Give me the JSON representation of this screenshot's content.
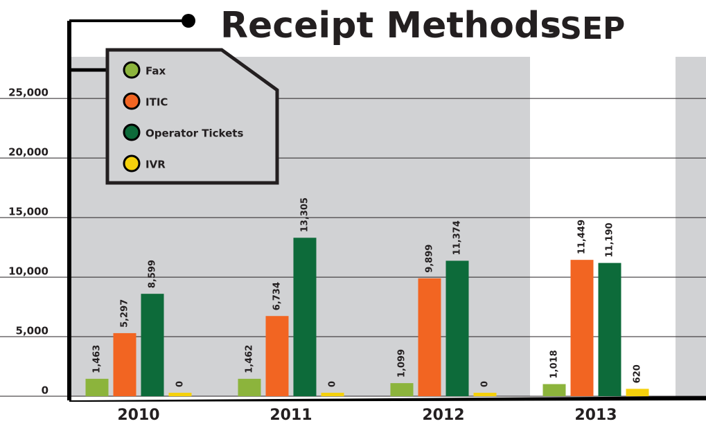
{
  "chart_data": {
    "type": "bar",
    "title": "Receipt Methods",
    "subtitle": "-SEP",
    "categories": [
      "2010",
      "2011",
      "2012",
      "2013"
    ],
    "series": [
      {
        "name": "Fax",
        "color": "#8cb43c",
        "values": [
          1463,
          1462,
          1099,
          1018
        ],
        "value_labels": [
          "1,463",
          "1,462",
          "1,099",
          "1,018"
        ]
      },
      {
        "name": "ITIC",
        "color": "#f26522",
        "values": [
          5297,
          6734,
          9899,
          11449
        ],
        "value_labels": [
          "5,297",
          "6,734",
          "9,899",
          "11,449"
        ]
      },
      {
        "name": "Operator Tickets",
        "color": "#0d6b3a",
        "values": [
          8599,
          13305,
          11374,
          11190
        ],
        "value_labels": [
          "8,599",
          "13,305",
          "11,374",
          "11,190"
        ]
      },
      {
        "name": "IVR",
        "color": "#f5d10c",
        "values": [
          0,
          0,
          0,
          620
        ],
        "value_labels": [
          "0",
          "0",
          "0",
          "620"
        ]
      }
    ],
    "ylim": [
      0,
      28500
    ],
    "yticks": [
      0,
      {
        "value": 5000,
        "label": "5,000"
      },
      {
        "value": 10000,
        "label": "10,000"
      },
      {
        "value": 15000,
        "label": "15,000"
      },
      {
        "value": 20000,
        "label": "20,000"
      },
      {
        "value": 25000,
        "label": "25,000"
      }
    ],
    "grid": true,
    "legend": "upper left"
  }
}
